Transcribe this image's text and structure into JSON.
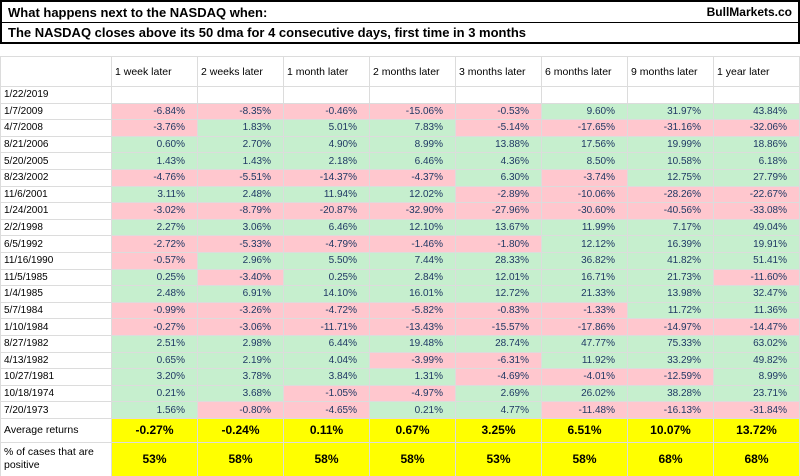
{
  "header": {
    "title": "What happens next to the NASDAQ when:",
    "brand": "BullMarkets.co",
    "subtitle": "The NASDAQ closes above its 50 dma for 4 consecutive days, first time in 3 months"
  },
  "colors": {
    "positive_fill": "#c6efce",
    "negative_fill": "#ffc7ce",
    "summary_fill": "#ffff00"
  },
  "table": {
    "columns": [
      "1 week later",
      "2 weeks later",
      "1 month later",
      "2 months later",
      "3 months later",
      "6 months later",
      "9 months later",
      "1 year later"
    ],
    "rows": [
      {
        "date": "1/22/2019",
        "values": [
          "",
          "",
          "",
          "",
          "",
          "",
          "",
          ""
        ]
      },
      {
        "date": "1/7/2009",
        "values": [
          "-6.84%",
          "-8.35%",
          "-0.46%",
          "-15.06%",
          "-0.53%",
          "9.60%",
          "31.97%",
          "43.84%"
        ]
      },
      {
        "date": "4/7/2008",
        "values": [
          "-3.76%",
          "1.83%",
          "5.01%",
          "7.83%",
          "-5.14%",
          "-17.65%",
          "-31.16%",
          "-32.06%"
        ]
      },
      {
        "date": "8/21/2006",
        "values": [
          "0.60%",
          "2.70%",
          "4.90%",
          "8.99%",
          "13.88%",
          "17.56%",
          "19.99%",
          "18.86%"
        ]
      },
      {
        "date": "5/20/2005",
        "values": [
          "1.43%",
          "1.43%",
          "2.18%",
          "6.46%",
          "4.36%",
          "8.50%",
          "10.58%",
          "6.18%"
        ]
      },
      {
        "date": "8/23/2002",
        "values": [
          "-4.76%",
          "-5.51%",
          "-14.37%",
          "-4.37%",
          "6.30%",
          "-3.74%",
          "12.75%",
          "27.79%"
        ]
      },
      {
        "date": "11/6/2001",
        "values": [
          "3.11%",
          "2.48%",
          "11.94%",
          "12.02%",
          "-2.89%",
          "-10.06%",
          "-28.26%",
          "-22.67%"
        ]
      },
      {
        "date": "1/24/2001",
        "values": [
          "-3.02%",
          "-8.79%",
          "-20.87%",
          "-32.90%",
          "-27.96%",
          "-30.60%",
          "-40.56%",
          "-33.08%"
        ]
      },
      {
        "date": "2/2/1998",
        "values": [
          "2.27%",
          "3.06%",
          "6.46%",
          "12.10%",
          "13.67%",
          "11.99%",
          "7.17%",
          "49.04%"
        ]
      },
      {
        "date": "6/5/1992",
        "values": [
          "-2.72%",
          "-5.33%",
          "-4.79%",
          "-1.46%",
          "-1.80%",
          "12.12%",
          "16.39%",
          "19.91%"
        ]
      },
      {
        "date": "11/16/1990",
        "values": [
          "-0.57%",
          "2.96%",
          "5.50%",
          "7.44%",
          "28.33%",
          "36.82%",
          "41.82%",
          "51.41%"
        ]
      },
      {
        "date": "11/5/1985",
        "values": [
          "0.25%",
          "-3.40%",
          "0.25%",
          "2.84%",
          "12.01%",
          "16.71%",
          "21.73%",
          "-11.60%"
        ]
      },
      {
        "date": "1/4/1985",
        "values": [
          "2.48%",
          "6.91%",
          "14.10%",
          "16.01%",
          "12.72%",
          "21.33%",
          "13.98%",
          "32.47%"
        ]
      },
      {
        "date": "5/7/1984",
        "values": [
          "-0.99%",
          "-3.26%",
          "-4.72%",
          "-5.82%",
          "-0.83%",
          "-1.33%",
          "11.72%",
          "11.36%"
        ]
      },
      {
        "date": "1/10/1984",
        "values": [
          "-0.27%",
          "-3.06%",
          "-11.71%",
          "-13.43%",
          "-15.57%",
          "-17.86%",
          "-14.97%",
          "-14.47%"
        ]
      },
      {
        "date": "8/27/1982",
        "values": [
          "2.51%",
          "2.98%",
          "6.44%",
          "19.48%",
          "28.74%",
          "47.77%",
          "75.33%",
          "63.02%"
        ]
      },
      {
        "date": "4/13/1982",
        "values": [
          "0.65%",
          "2.19%",
          "4.04%",
          "-3.99%",
          "-6.31%",
          "11.92%",
          "33.29%",
          "49.82%"
        ]
      },
      {
        "date": "10/27/1981",
        "values": [
          "3.20%",
          "3.78%",
          "3.84%",
          "1.31%",
          "-4.69%",
          "-4.01%",
          "-12.59%",
          "8.99%"
        ]
      },
      {
        "date": "10/18/1974",
        "values": [
          "0.21%",
          "3.68%",
          "-1.05%",
          "-4.97%",
          "2.69%",
          "26.02%",
          "38.28%",
          "23.71%"
        ]
      },
      {
        "date": "7/20/1973",
        "values": [
          "1.56%",
          "-0.80%",
          "-4.65%",
          "0.21%",
          "4.77%",
          "-11.48%",
          "-16.13%",
          "-31.84%"
        ]
      }
    ],
    "summary": [
      {
        "label": "Average returns",
        "values": [
          "-0.27%",
          "-0.24%",
          "0.11%",
          "0.67%",
          "3.25%",
          "6.51%",
          "10.07%",
          "13.72%"
        ]
      },
      {
        "label": "% of cases that are positive",
        "values": [
          "53%",
          "58%",
          "58%",
          "58%",
          "53%",
          "58%",
          "68%",
          "68%"
        ]
      }
    ]
  }
}
